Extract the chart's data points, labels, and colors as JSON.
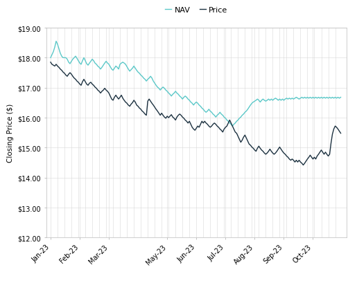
{
  "ylabel": "Closing Price ($)",
  "ylim": [
    12.0,
    19.0
  ],
  "yticks": [
    12.0,
    13.0,
    14.0,
    15.0,
    16.0,
    17.0,
    18.0,
    19.0
  ],
  "nav_color": "#5BC8C8",
  "price_color": "#1C3140",
  "background_color": "#FFFFFF",
  "grid_color": "#D8D8D8",
  "x_labels": [
    "Jan-23",
    "Feb-23",
    "Mar-23",
    "May-23",
    "Jun-23",
    "Jul-23",
    "Aug-23",
    "Sep-23",
    "Oct-23"
  ],
  "nav": [
    18.0,
    18.1,
    18.2,
    18.35,
    18.55,
    18.45,
    18.3,
    18.15,
    18.05,
    18.0,
    18.0,
    18.0,
    17.95,
    17.85,
    17.8,
    17.88,
    17.95,
    18.0,
    18.05,
    17.98,
    17.9,
    17.82,
    17.78,
    17.9,
    18.0,
    17.9,
    17.8,
    17.75,
    17.82,
    17.88,
    17.95,
    17.9,
    17.82,
    17.78,
    17.72,
    17.68,
    17.62,
    17.68,
    17.75,
    17.82,
    17.88,
    17.82,
    17.78,
    17.7,
    17.62,
    17.58,
    17.65,
    17.72,
    17.68,
    17.62,
    17.78,
    17.82,
    17.85,
    17.82,
    17.78,
    17.7,
    17.62,
    17.55,
    17.6,
    17.65,
    17.72,
    17.65,
    17.58,
    17.52,
    17.48,
    17.42,
    17.38,
    17.32,
    17.28,
    17.22,
    17.28,
    17.32,
    17.38,
    17.32,
    17.22,
    17.15,
    17.08,
    17.02,
    16.98,
    16.92,
    16.98,
    17.02,
    16.98,
    16.92,
    16.88,
    16.82,
    16.78,
    16.72,
    16.78,
    16.82,
    16.88,
    16.82,
    16.78,
    16.72,
    16.68,
    16.62,
    16.68,
    16.72,
    16.68,
    16.62,
    16.58,
    16.52,
    16.48,
    16.42,
    16.48,
    16.52,
    16.48,
    16.42,
    16.38,
    16.32,
    16.28,
    16.22,
    16.18,
    16.22,
    16.28,
    16.22,
    16.18,
    16.12,
    16.08,
    16.02,
    16.08,
    16.12,
    16.18,
    16.12,
    16.08,
    16.02,
    15.98,
    15.92,
    15.88,
    15.82,
    15.78,
    15.72,
    15.78,
    15.82,
    15.88,
    15.92,
    15.98,
    16.02,
    16.08,
    16.12,
    16.18,
    16.22,
    16.28,
    16.35,
    16.42,
    16.48,
    16.52,
    16.55,
    16.58,
    16.62,
    16.58,
    16.52,
    16.58,
    16.62,
    16.58,
    16.55,
    16.58,
    16.62,
    16.58,
    16.62,
    16.58,
    16.62,
    16.65,
    16.62,
    16.58,
    16.62,
    16.58,
    16.62,
    16.58,
    16.62,
    16.65,
    16.62,
    16.65,
    16.62,
    16.65,
    16.62,
    16.65,
    16.68,
    16.65,
    16.62,
    16.65,
    16.68,
    16.65,
    16.68,
    16.65,
    16.68,
    16.65,
    16.68,
    16.65,
    16.68,
    16.65,
    16.68,
    16.65,
    16.68,
    16.65,
    16.68,
    16.65,
    16.68,
    16.65,
    16.68,
    16.65,
    16.68,
    16.65,
    16.68,
    16.65,
    16.68,
    16.65,
    16.68,
    16.65,
    16.68
  ],
  "price": [
    17.85,
    17.78,
    17.75,
    17.72,
    17.78,
    17.72,
    17.68,
    17.62,
    17.58,
    17.52,
    17.48,
    17.42,
    17.38,
    17.45,
    17.5,
    17.45,
    17.38,
    17.32,
    17.28,
    17.22,
    17.18,
    17.12,
    17.08,
    17.2,
    17.28,
    17.2,
    17.12,
    17.08,
    17.15,
    17.18,
    17.12,
    17.08,
    17.02,
    16.98,
    16.92,
    16.88,
    16.82,
    16.88,
    16.92,
    16.98,
    16.92,
    16.88,
    16.82,
    16.72,
    16.62,
    16.58,
    16.68,
    16.75,
    16.68,
    16.62,
    16.68,
    16.75,
    16.65,
    16.58,
    16.52,
    16.48,
    16.42,
    16.38,
    16.45,
    16.5,
    16.58,
    16.52,
    16.42,
    16.38,
    16.32,
    16.28,
    16.22,
    16.18,
    16.12,
    16.08,
    16.55,
    16.62,
    16.55,
    16.48,
    16.42,
    16.35,
    16.28,
    16.22,
    16.15,
    16.08,
    16.15,
    16.08,
    16.02,
    15.98,
    16.05,
    16.0,
    16.05,
    16.1,
    16.02,
    15.98,
    15.92,
    16.02,
    16.08,
    16.12,
    16.08,
    16.02,
    15.98,
    15.92,
    15.88,
    15.82,
    15.88,
    15.78,
    15.68,
    15.62,
    15.58,
    15.65,
    15.72,
    15.68,
    15.78,
    15.88,
    15.82,
    15.88,
    15.82,
    15.78,
    15.72,
    15.68,
    15.72,
    15.78,
    15.82,
    15.78,
    15.72,
    15.68,
    15.62,
    15.58,
    15.52,
    15.62,
    15.68,
    15.72,
    15.82,
    15.92,
    15.82,
    15.72,
    15.62,
    15.52,
    15.48,
    15.38,
    15.28,
    15.18,
    15.25,
    15.35,
    15.42,
    15.32,
    15.22,
    15.12,
    15.08,
    15.02,
    14.98,
    14.92,
    14.88,
    14.98,
    15.05,
    14.98,
    14.92,
    14.88,
    14.82,
    14.78,
    14.82,
    14.88,
    14.95,
    14.88,
    14.82,
    14.78,
    14.82,
    14.88,
    14.95,
    15.02,
    14.95,
    14.88,
    14.82,
    14.78,
    14.72,
    14.68,
    14.62,
    14.58,
    14.62,
    14.58,
    14.52,
    14.58,
    14.52,
    14.58,
    14.52,
    14.48,
    14.42,
    14.48,
    14.55,
    14.62,
    14.68,
    14.75,
    14.68,
    14.62,
    14.68,
    14.62,
    14.72,
    14.78,
    14.85,
    14.92,
    14.85,
    14.78,
    14.85,
    14.78,
    14.72,
    14.78,
    15.15,
    15.45,
    15.62,
    15.72,
    15.68,
    15.62,
    15.55,
    15.48
  ]
}
